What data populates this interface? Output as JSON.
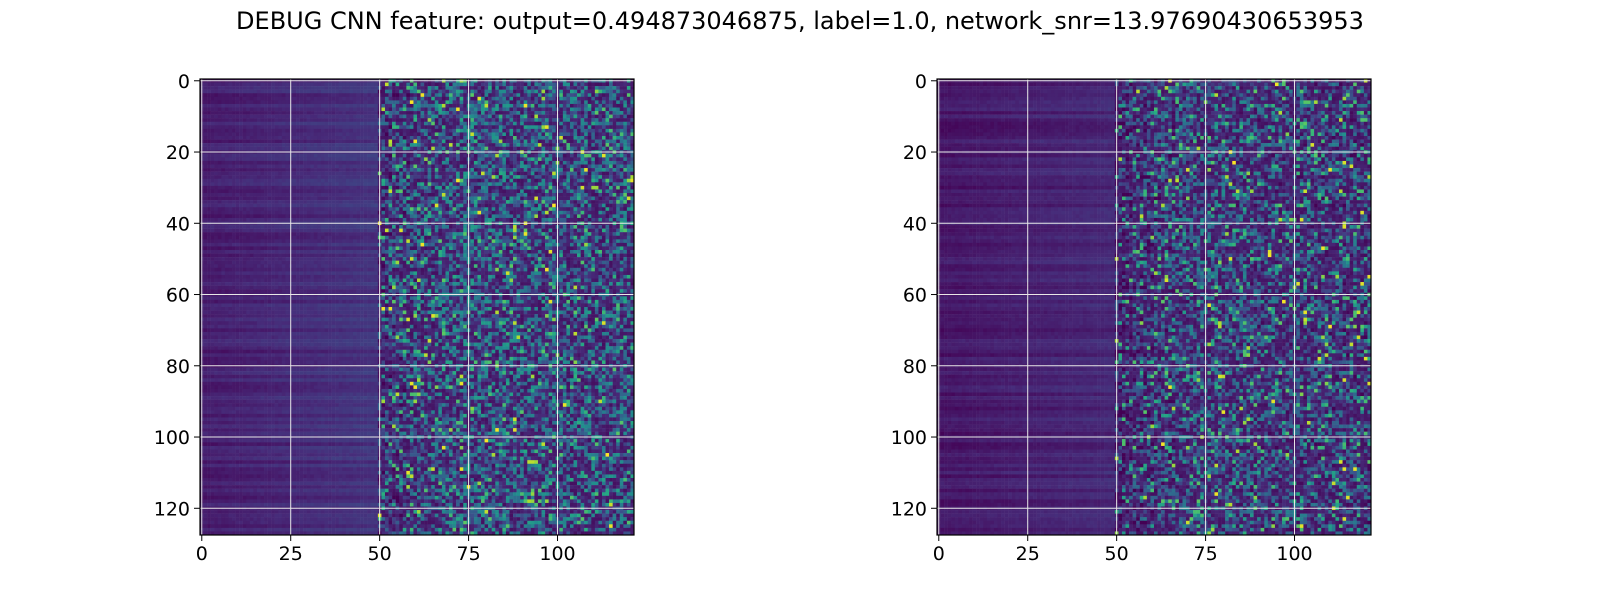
{
  "figure": {
    "title": "DEBUG CNN feature: output=0.494873046875, label=1.0, network_snr=13.97690430653953"
  },
  "chart_data": [
    {
      "type": "heatmap",
      "title": "",
      "xlabel": "",
      "ylabel": "",
      "colormap": "viridis",
      "grid": true,
      "grid_color": "#e8e8e8",
      "n_rows": 128,
      "n_cols": 122,
      "xlim": [
        0,
        121
      ],
      "ylim": [
        127,
        0
      ],
      "x_ticks": [
        0,
        25,
        50,
        75,
        100
      ],
      "y_ticks": [
        0,
        20,
        40,
        60,
        80,
        100,
        120
      ],
      "x_tick_labels": [
        "0",
        "25",
        "50",
        "75",
        "100"
      ],
      "y_tick_labels": [
        "0",
        "20",
        "40",
        "60",
        "80",
        "100",
        "120"
      ],
      "value_range": [
        0,
        1
      ],
      "column_profile": {
        "x": [
          0,
          25,
          50,
          60,
          75,
          90,
          121
        ],
        "mean": [
          0.08,
          0.12,
          0.16,
          0.26,
          0.34,
          0.3,
          0.28
        ]
      },
      "description_of_values": "low values (dark purple) on left third, increasingly noisy and brighter (teal/green, a few yellow) toward right"
    },
    {
      "type": "heatmap",
      "title": "",
      "xlabel": "",
      "ylabel": "",
      "colormap": "viridis",
      "grid": true,
      "grid_color": "#e8e8e8",
      "n_rows": 128,
      "n_cols": 122,
      "xlim": [
        0,
        121
      ],
      "ylim": [
        127,
        0
      ],
      "x_ticks": [
        0,
        25,
        50,
        75,
        100
      ],
      "y_ticks": [
        0,
        20,
        40,
        60,
        80,
        100,
        120
      ],
      "x_tick_labels": [
        "0",
        "25",
        "50",
        "75",
        "100"
      ],
      "y_tick_labels": [
        "0",
        "20",
        "40",
        "60",
        "80",
        "100",
        "120"
      ],
      "value_range": [
        0,
        1
      ],
      "column_profile": {
        "x": [
          0,
          25,
          50,
          60,
          75,
          90,
          121
        ],
        "mean": [
          0.06,
          0.09,
          0.12,
          0.2,
          0.27,
          0.24,
          0.22
        ]
      },
      "description_of_values": "darker overall than first panel, noisy brighter region right of column ~50"
    }
  ]
}
